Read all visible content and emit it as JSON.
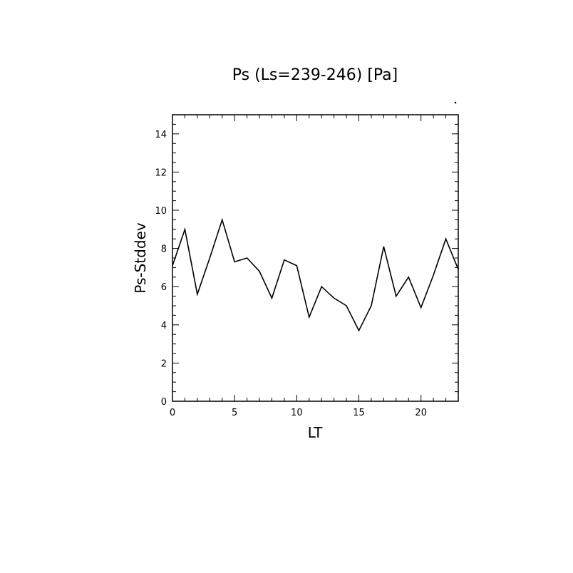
{
  "chart_data": {
    "type": "line",
    "title": "Ps (Ls=239-246) [Pa]",
    "xlabel": "LT",
    "ylabel": "Ps-Stddev",
    "xlim": [
      0,
      23
    ],
    "ylim": [
      0,
      15
    ],
    "xticks": [
      "0",
      "5",
      "10",
      "15",
      "20"
    ],
    "yticks": [
      "0",
      "2",
      "4",
      "6",
      "8",
      "10",
      "12",
      "14"
    ],
    "grid": false,
    "series": [
      {
        "x": [
          0,
          1,
          2,
          3,
          4,
          5,
          6,
          7,
          8,
          9,
          10,
          11,
          12,
          13,
          14,
          15,
          16,
          17,
          18,
          19,
          20,
          21,
          22,
          23
        ],
        "values": [
          7.1,
          9.0,
          5.6,
          7.5,
          9.5,
          7.3,
          7.5,
          6.8,
          5.4,
          7.4,
          7.1,
          4.4,
          6.0,
          5.4,
          5.0,
          3.7,
          5.0,
          8.1,
          5.5,
          6.5,
          4.9,
          6.6,
          8.5,
          6.9
        ]
      }
    ]
  }
}
